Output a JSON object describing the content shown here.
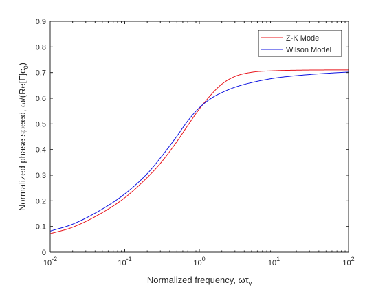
{
  "chart_data": {
    "type": "line",
    "title": "",
    "xlabel": {
      "text": "Normalized frequency, ωτ",
      "sub": "v"
    },
    "ylabel": {
      "text": "Normalized phase speed, ω/(Re[Γ]c",
      "sub": "0",
      "suffix": ")"
    },
    "xscale": "log",
    "xlim": [
      0.01,
      100
    ],
    "ylim": [
      0,
      0.9
    ],
    "grid": false,
    "legend_location": "top-right",
    "x_ticks": [
      {
        "value": 0.01,
        "base": "10",
        "exp": "-2"
      },
      {
        "value": 0.1,
        "base": "10",
        "exp": "-1"
      },
      {
        "value": 1,
        "base": "10",
        "exp": "0"
      },
      {
        "value": 10,
        "base": "10",
        "exp": "1"
      },
      {
        "value": 100,
        "base": "10",
        "exp": "2"
      }
    ],
    "y_ticks": [
      {
        "value": 0,
        "label": "0"
      },
      {
        "value": 0.1,
        "label": "0.1"
      },
      {
        "value": 0.2,
        "label": "0.2"
      },
      {
        "value": 0.3,
        "label": "0.3"
      },
      {
        "value": 0.4,
        "label": "0.4"
      },
      {
        "value": 0.5,
        "label": "0.5"
      },
      {
        "value": 0.6,
        "label": "0.6"
      },
      {
        "value": 0.7,
        "label": "0.7"
      },
      {
        "value": 0.8,
        "label": "0.8"
      },
      {
        "value": 0.9,
        "label": "0.9"
      }
    ],
    "series": [
      {
        "name": "Z-K Model",
        "color": "#e8141b",
        "x": [
          0.01,
          0.02,
          0.05,
          0.1,
          0.2,
          0.3,
          0.5,
          0.7,
          1,
          1.5,
          2,
          3,
          5,
          10,
          20,
          50,
          100
        ],
        "y": [
          0.072,
          0.097,
          0.154,
          0.212,
          0.291,
          0.346,
          0.431,
          0.494,
          0.558,
          0.62,
          0.655,
          0.685,
          0.701,
          0.707,
          0.709,
          0.71,
          0.71
        ]
      },
      {
        "name": "Wilson Model",
        "color": "#0c12e0",
        "x": [
          0.01,
          0.02,
          0.05,
          0.1,
          0.2,
          0.3,
          0.5,
          0.7,
          1,
          1.5,
          2,
          3,
          5,
          10,
          20,
          50,
          100
        ],
        "y": [
          0.082,
          0.109,
          0.168,
          0.227,
          0.306,
          0.367,
          0.452,
          0.512,
          0.563,
          0.603,
          0.622,
          0.643,
          0.661,
          0.678,
          0.688,
          0.697,
          0.702
        ]
      }
    ]
  }
}
